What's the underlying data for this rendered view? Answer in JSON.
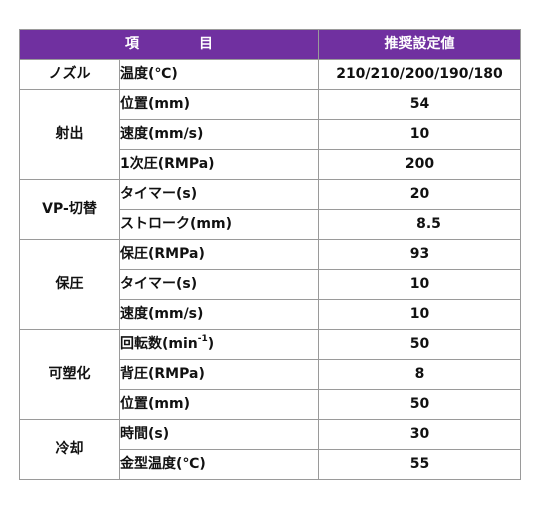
{
  "header": {
    "col_item_a": "項",
    "col_item_b": "目",
    "col_value": "推奨設定値"
  },
  "groups": [
    {
      "category": "ノズル",
      "rows": [
        {
          "item": "温度(℃)",
          "value": "210/210/200/190/180"
        }
      ]
    },
    {
      "category": "射出",
      "rows": [
        {
          "item": "位置(mm)",
          "value": "54"
        },
        {
          "item": "速度(mm/s)",
          "value": "10"
        },
        {
          "item": "1次圧(RMPa)",
          "value": "200"
        }
      ]
    },
    {
      "category": "VP-切替",
      "rows": [
        {
          "item": "タイマー(s)",
          "value": "20"
        },
        {
          "item": "ストローク(mm)",
          "value": "8.5"
        }
      ]
    },
    {
      "category": "保圧",
      "rows": [
        {
          "item": "保圧(RMPa)",
          "value": "93"
        },
        {
          "item": "タイマー(s)",
          "value": "10"
        },
        {
          "item": "速度(mm/s)",
          "value": "10"
        }
      ]
    },
    {
      "category": "可塑化",
      "rows": [
        {
          "item": "回転数(min",
          "item_sup": "-1",
          "item_tail": ")",
          "value": "50"
        },
        {
          "item": "背圧(RMPa)",
          "value": "8"
        },
        {
          "item": "位置(mm)",
          "value": "50"
        }
      ]
    },
    {
      "category": "冷却",
      "rows": [
        {
          "item": "時間(s)",
          "value": "30"
        },
        {
          "item": "金型温度(℃)",
          "value": "55"
        }
      ]
    }
  ]
}
